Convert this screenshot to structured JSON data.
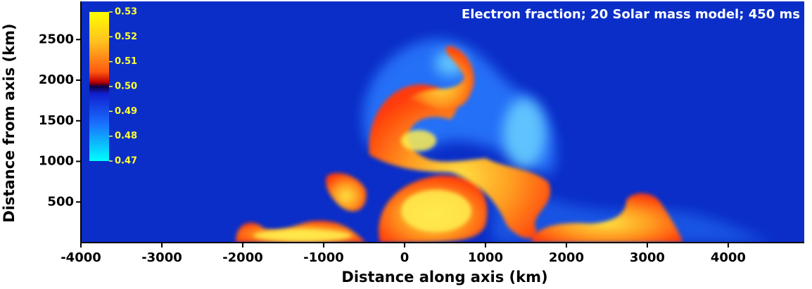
{
  "chart_data": {
    "type": "heatmap",
    "title": "Electron fraction; 20 Solar mass model; 450 ms",
    "x_label": "Distance along axis (km)",
    "y_label": "Distance from axis (km)",
    "xlim": [
      -4000,
      4940
    ],
    "xticks": [
      -4000,
      -3000,
      -2000,
      -1000,
      0,
      1000,
      2000,
      3000,
      4000
    ],
    "ylim": [
      0,
      2970
    ],
    "yticks": [
      500,
      1000,
      1500,
      2000,
      2500
    ],
    "colorbar": {
      "lim": [
        0.47,
        0.53
      ],
      "ticks": [
        0.53,
        0.52,
        0.51,
        {
          "value": 0.5,
          "label": "0.50"
        },
        0.49,
        0.48,
        0.47
      ]
    },
    "background_color": "#0b2ec8"
  }
}
